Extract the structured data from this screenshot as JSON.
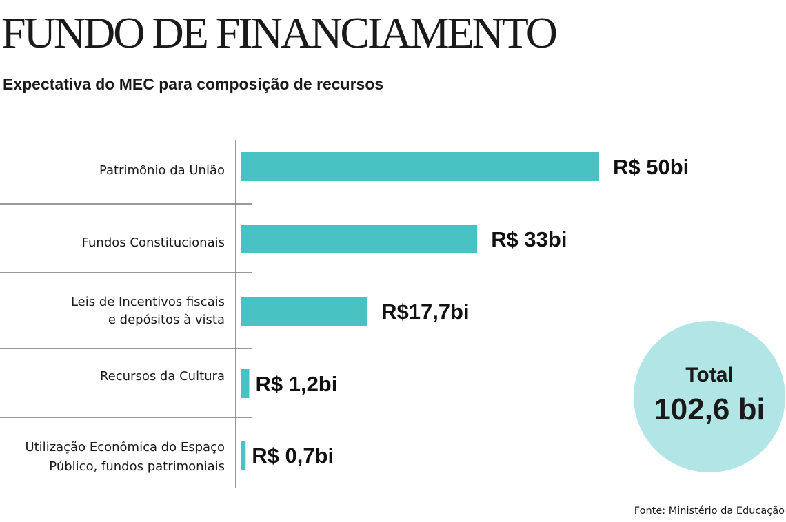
{
  "chart_data": {
    "type": "bar",
    "orientation": "horizontal",
    "title": "FUNDO DE FINANCIAMENTO",
    "subtitle": "Expectativa do MEC para composição de recursos",
    "categories": [
      [
        "Patrimônio da União"
      ],
      [
        "Fundos Constitucionais"
      ],
      [
        "Leis de Incentivos fiscais",
        "e depósitos à vista"
      ],
      [
        "Recursos da Cultura"
      ],
      [
        "Utilização Econômica do Espaço",
        "Público, fundos patrimoniais"
      ]
    ],
    "values": [
      50,
      33,
      17.7,
      1.2,
      0.7
    ],
    "value_labels": [
      "R$ 50bi",
      "R$ 33bi",
      "R$17,7bi",
      "R$ 1,2bi",
      "R$ 0,7bi"
    ],
    "unit": "R$ bi",
    "total": {
      "label": "Total",
      "value": 102.6,
      "value_label": "102,6 bi"
    },
    "bar_color": "#48c2c2",
    "total_color": "#b2e6e6",
    "grid": false,
    "source": "Fonte: Ministério da Educação"
  }
}
